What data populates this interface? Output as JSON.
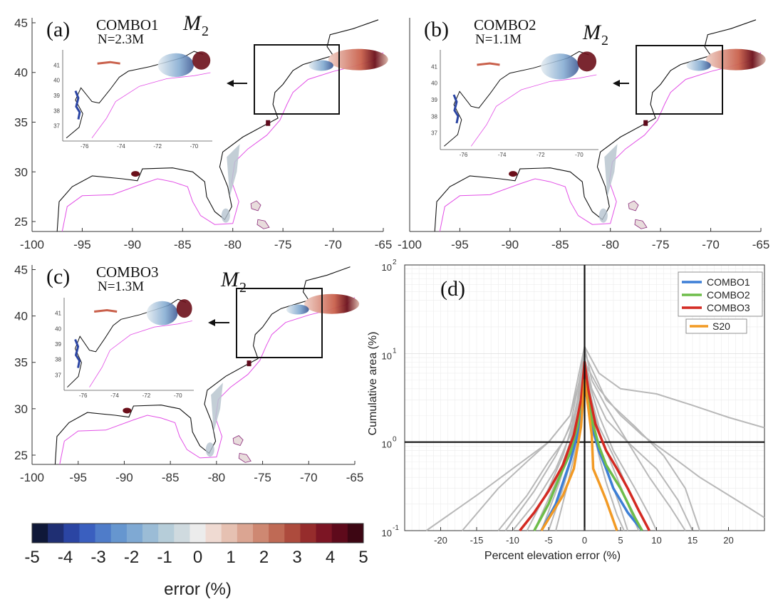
{
  "panels": [
    {
      "label": "(a)",
      "title": "COMBO1",
      "subtitle": "N=2.3M",
      "constituent": "M",
      "constituent_sub": "2",
      "x_ticks": [
        "-100",
        "-95",
        "-90",
        "-85",
        "-80",
        "-75",
        "-70",
        "-65"
      ],
      "y_ticks": [
        "45",
        "40",
        "35",
        "30",
        "25"
      ],
      "inset_x_ticks": [
        "-76",
        "-74",
        "-72",
        "-70"
      ],
      "inset_y_ticks": [
        "41",
        "40",
        "39",
        "38",
        "37"
      ]
    },
    {
      "label": "(b)",
      "title": "COMBO2",
      "subtitle": "N=1.1M",
      "constituent": "M",
      "constituent_sub": "2",
      "x_ticks": [
        "-100",
        "-95",
        "-90",
        "-85",
        "-80",
        "-75",
        "-70",
        "-65"
      ],
      "inset_x_ticks": [
        "-76",
        "-74",
        "-72",
        "-70"
      ],
      "inset_y_ticks": [
        "41",
        "40",
        "39",
        "38",
        "37"
      ]
    },
    {
      "label": "(c)",
      "title": "COMBO3",
      "subtitle": "N=1.3M",
      "constituent": "M",
      "constituent_sub": "2",
      "x_ticks": [
        "-100",
        "-95",
        "-90",
        "-85",
        "-80",
        "-75",
        "-70",
        "-65"
      ],
      "y_ticks": [
        "45",
        "40",
        "35",
        "30",
        "25"
      ],
      "inset_x_ticks": [
        "-76",
        "-74",
        "-72",
        "-70"
      ],
      "inset_y_ticks": [
        "41",
        "40",
        "39",
        "38",
        "37"
      ]
    }
  ],
  "colorbar": {
    "ticks": [
      "-5",
      "-4",
      "-3",
      "-2",
      "-1",
      "0",
      "1",
      "2",
      "3",
      "4",
      "5"
    ],
    "label": "error (%)",
    "range": [
      -5,
      5
    ],
    "colors": [
      "#0f1838",
      "#1f2f73",
      "#2b45a3",
      "#3a5fbf",
      "#4f7cc9",
      "#6696cf",
      "#7fa9d3",
      "#9bbcd6",
      "#b6cdd9",
      "#cfdadf",
      "#ececec",
      "#efdad2",
      "#e6c1b2",
      "#dba592",
      "#ce8872",
      "#bf6a55",
      "#ad4b3d",
      "#962c2c",
      "#7c1524",
      "#5e0a1b",
      "#3d0613"
    ]
  },
  "chart_data": {
    "type": "line",
    "panel_label": "(d)",
    "xlabel": "Percent elevation error (%)",
    "ylabel": "Cumulative area (%)",
    "x_ticks": [
      "-20",
      "-15",
      "-10",
      "-5",
      "0",
      "5",
      "10",
      "15",
      "20"
    ],
    "y_ticks": [
      "10",
      "10",
      "10"
    ],
    "y_tick_exponents": [
      "-1",
      "0",
      "1",
      "2"
    ],
    "xlim": [
      -25,
      25
    ],
    "ylim": [
      0.1,
      100
    ],
    "y_scale": "log",
    "grid": true,
    "legend_position": "top-right",
    "reference_lines": {
      "vertical_x": 0,
      "horizontal_y": 1
    },
    "series": [
      {
        "name": "COMBO1",
        "color": "#3d7fd6",
        "x": [
          -6,
          -4,
          -3,
          -2,
          -1,
          -0.5,
          0,
          0.5,
          1,
          2,
          3,
          4,
          6,
          8
        ],
        "y": [
          0.1,
          0.2,
          0.35,
          0.6,
          1.2,
          2.5,
          6,
          3,
          1.5,
          0.8,
          0.5,
          0.3,
          0.16,
          0.1
        ]
      },
      {
        "name": "COMBO2",
        "color": "#6ebd4a",
        "x": [
          -7,
          -5,
          -3.5,
          -2,
          -1,
          -0.5,
          0,
          0.5,
          1,
          2,
          3,
          5,
          7,
          8
        ],
        "y": [
          0.1,
          0.2,
          0.4,
          0.75,
          1.5,
          3,
          7,
          3.5,
          1.8,
          0.9,
          0.55,
          0.3,
          0.14,
          0.1
        ]
      },
      {
        "name": "COMBO3",
        "color": "#d42a22",
        "x": [
          -9,
          -7,
          -5,
          -3,
          -1.5,
          -0.5,
          0,
          0.5,
          1.5,
          3,
          4.5,
          6,
          7.5,
          9
        ],
        "y": [
          0.1,
          0.16,
          0.28,
          0.55,
          1.2,
          3,
          8,
          4,
          1.6,
          0.8,
          0.5,
          0.3,
          0.17,
          0.1
        ]
      },
      {
        "name": "S20",
        "color": "#f29a24",
        "x": [
          -6,
          -3,
          -1.5,
          -0.5,
          0,
          0.5,
          1,
          1.2,
          2,
          3,
          4,
          4.5
        ],
        "y": [
          0.1,
          0.25,
          0.5,
          1.5,
          5,
          2.5,
          1.2,
          0.5,
          0.35,
          0.22,
          0.13,
          0.1
        ]
      }
    ],
    "background_series": [
      {
        "x": [
          -22,
          -15,
          -10,
          -5,
          -2,
          0,
          2,
          5,
          10,
          15,
          20,
          25
        ],
        "y": [
          0.1,
          0.25,
          0.5,
          1,
          2,
          12,
          6,
          4,
          3.5,
          2.6,
          1.9,
          1.45
        ]
      },
      {
        "x": [
          -17,
          -12,
          -8,
          -5,
          -2,
          0,
          2,
          5,
          8,
          12,
          16,
          22,
          25
        ],
        "y": [
          0.1,
          0.3,
          0.6,
          1,
          2,
          8,
          4,
          2,
          1.2,
          0.7,
          0.4,
          0.2,
          0.14
        ]
      },
      {
        "x": [
          -12,
          -8,
          -5,
          -3,
          -1,
          0,
          1,
          3,
          6,
          10,
          13,
          15
        ],
        "y": [
          0.1,
          0.25,
          0.6,
          1,
          2.5,
          9,
          4,
          1.8,
          1,
          0.5,
          0.22,
          0.1
        ]
      },
      {
        "x": [
          -10,
          -7,
          -4,
          -2,
          -1,
          0,
          1,
          3,
          6,
          9,
          12,
          14
        ],
        "y": [
          0.1,
          0.2,
          0.5,
          1.2,
          3,
          12,
          5,
          2.5,
          1,
          0.4,
          0.18,
          0.1
        ]
      },
      {
        "x": [
          -8,
          -5,
          -3,
          -1.5,
          -0.5,
          0,
          0.5,
          2,
          4,
          7,
          9,
          10
        ],
        "y": [
          0.1,
          0.3,
          0.7,
          1.8,
          4,
          9,
          5,
          2,
          0.8,
          0.3,
          0.15,
          0.1
        ]
      },
      {
        "x": [
          -7,
          -4,
          -2,
          -1,
          0,
          1,
          2,
          4,
          6,
          8,
          9
        ],
        "y": [
          0.1,
          0.35,
          1,
          2.5,
          7,
          3,
          1.5,
          0.7,
          0.3,
          0.14,
          0.1
        ]
      },
      {
        "x": [
          -6,
          -3.5,
          -2,
          -1,
          0,
          1,
          2.5,
          4,
          6,
          7.5
        ],
        "y": [
          0.1,
          0.35,
          0.9,
          2,
          6,
          2.5,
          1,
          0.5,
          0.2,
          0.1
        ]
      },
      {
        "x": [
          -5,
          -3,
          -1.5,
          -0.5,
          0,
          1,
          2,
          3.5,
          5,
          6
        ],
        "y": [
          0.1,
          0.3,
          0.8,
          2.2,
          5,
          2,
          0.9,
          0.4,
          0.18,
          0.1
        ]
      },
      {
        "x": [
          -4,
          -2.5,
          -1,
          0,
          1,
          2,
          3,
          4.5,
          5.5
        ],
        "y": [
          0.1,
          0.3,
          1,
          4,
          1.6,
          0.7,
          0.35,
          0.15,
          0.1
        ]
      },
      {
        "x": [
          -11,
          -7,
          -4,
          -2,
          0,
          3,
          7,
          11,
          14,
          16
        ],
        "y": [
          0.1,
          0.28,
          0.7,
          1.5,
          10,
          3,
          1.5,
          0.7,
          0.3,
          0.1
        ]
      }
    ]
  },
  "legend": [
    {
      "name": "COMBO1",
      "color": "#3d7fd6"
    },
    {
      "name": "COMBO2",
      "color": "#6ebd4a"
    },
    {
      "name": "COMBO3",
      "color": "#d42a22"
    },
    {
      "name": "S20",
      "color": "#f29a24"
    }
  ]
}
